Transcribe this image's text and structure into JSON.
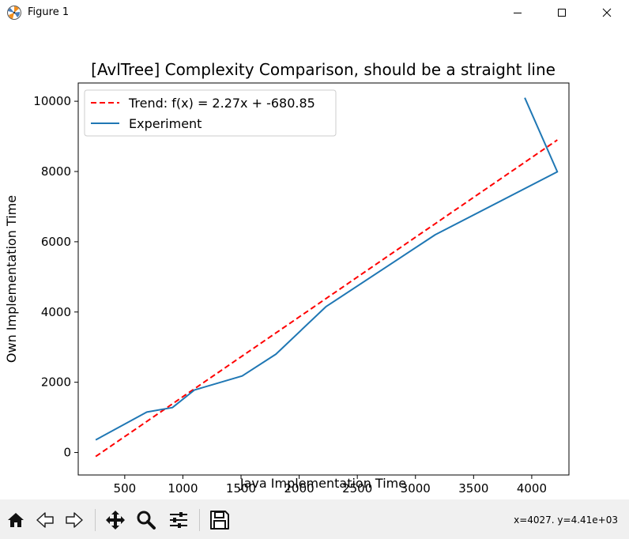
{
  "window": {
    "title": "Figure 1"
  },
  "toolbar": {
    "buttons": [
      {
        "icon": "home-icon"
      },
      {
        "icon": "back-arrow-icon"
      },
      {
        "icon": "forward-arrow-icon"
      },
      {
        "icon": "pan-icon"
      },
      {
        "icon": "zoom-icon"
      },
      {
        "icon": "configure-subplots-icon"
      },
      {
        "icon": "save-icon"
      }
    ],
    "coordinates": "x=4027. y=4.41e+03"
  },
  "chart_data": {
    "type": "line",
    "title": "[AvlTree] Complexity Comparison, should be a straight line",
    "xlabel": "Java Implementation Time",
    "ylabel": "Own Implementation Time",
    "xlim": [
      100,
      4320
    ],
    "ylim": [
      -640,
      10520
    ],
    "xticks": [
      500,
      1000,
      1500,
      2000,
      2500,
      3000,
      3500,
      4000
    ],
    "yticks": [
      0,
      2000,
      4000,
      6000,
      8000,
      10000
    ],
    "grid": false,
    "legend_position": "upper-left",
    "series": [
      {
        "name": "Trend: f(x) = 2.27x + -680.85",
        "style": "dashed",
        "color": "#ff0000",
        "x": [
          250,
          4220
        ],
        "y": [
          -113.35,
          8898.55
        ]
      },
      {
        "name": "Experiment",
        "style": "solid",
        "color": "#1f77b4",
        "x": [
          250,
          690,
          910,
          1100,
          1510,
          1800,
          2230,
          3170,
          4220,
          3940
        ],
        "y": [
          360,
          1150,
          1280,
          1780,
          2180,
          2800,
          4150,
          6200,
          7990,
          10100
        ]
      }
    ]
  }
}
